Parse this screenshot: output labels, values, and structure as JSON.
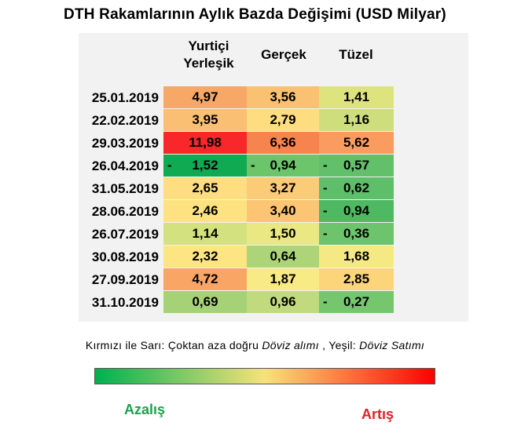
{
  "chart_data": {
    "type": "table",
    "title": "DTH Rakamlarının Aylık Bazda Değişimi (USD Milyar)",
    "columns": [
      {
        "line1": "Yurtiçi",
        "line2": "Yerleşik"
      },
      {
        "line1": "Gerçek",
        "line2": ""
      },
      {
        "line1": "Tüzel",
        "line2": ""
      }
    ],
    "rows": [
      {
        "date": "25.01.2019",
        "values": [
          {
            "sign": "",
            "text": "4,97",
            "value": 4.97,
            "color": "#f8a866"
          },
          {
            "sign": "",
            "text": "3,56",
            "value": 3.56,
            "color": "#fac172"
          },
          {
            "sign": "",
            "text": "1,41",
            "value": 1.41,
            "color": "#dde47d"
          }
        ]
      },
      {
        "date": "22.02.2019",
        "values": [
          {
            "sign": "",
            "text": "3,95",
            "value": 3.95,
            "color": "#fbbf73"
          },
          {
            "sign": "",
            "text": "2,79",
            "value": 2.79,
            "color": "#fedd80"
          },
          {
            "sign": "",
            "text": "1,16",
            "value": 1.16,
            "color": "#cfde7d"
          }
        ]
      },
      {
        "date": "29.03.2019",
        "values": [
          {
            "sign": "",
            "text": "11,98",
            "value": 11.98,
            "color": "#f8272a"
          },
          {
            "sign": "",
            "text": "6,36",
            "value": 6.36,
            "color": "#f7834e"
          },
          {
            "sign": "",
            "text": "5,62",
            "value": 5.62,
            "color": "#fa9b5f"
          }
        ]
      },
      {
        "date": "26.04.2019",
        "values": [
          {
            "sign": "-",
            "text": "1,52",
            "value": -1.52,
            "color": "#0faa52"
          },
          {
            "sign": "-",
            "text": "0,94",
            "value": -0.94,
            "color": "#6cc46b"
          },
          {
            "sign": "-",
            "text": "0,57",
            "value": -0.57,
            "color": "#63c06a"
          }
        ]
      },
      {
        "date": "31.05.2019",
        "values": [
          {
            "sign": "",
            "text": "2,65",
            "value": 2.65,
            "color": "#fede80"
          },
          {
            "sign": "",
            "text": "3,27",
            "value": 3.27,
            "color": "#fccb77"
          },
          {
            "sign": "-",
            "text": "0,62",
            "value": -0.62,
            "color": "#5fbe69"
          }
        ]
      },
      {
        "date": "28.06.2019",
        "values": [
          {
            "sign": "",
            "text": "2,46",
            "value": 2.46,
            "color": "#fee282"
          },
          {
            "sign": "",
            "text": "3,40",
            "value": 3.4,
            "color": "#fbc574"
          },
          {
            "sign": "-",
            "text": "0,94",
            "value": -0.94,
            "color": "#4fb862"
          }
        ]
      },
      {
        "date": "26.07.2019",
        "values": [
          {
            "sign": "",
            "text": "1,14",
            "value": 1.14,
            "color": "#d3e27f"
          },
          {
            "sign": "",
            "text": "1,50",
            "value": 1.5,
            "color": "#e9e883"
          },
          {
            "sign": "-",
            "text": "0,36",
            "value": -0.36,
            "color": "#6ec46c"
          }
        ]
      },
      {
        "date": "30.08.2019",
        "values": [
          {
            "sign": "",
            "text": "2,32",
            "value": 2.32,
            "color": "#fde583"
          },
          {
            "sign": "",
            "text": "0,64",
            "value": 0.64,
            "color": "#aed47a"
          },
          {
            "sign": "",
            "text": "1,68",
            "value": 1.68,
            "color": "#f5e984"
          }
        ]
      },
      {
        "date": "27.09.2019",
        "values": [
          {
            "sign": "",
            "text": "4,72",
            "value": 4.72,
            "color": "#f9a566"
          },
          {
            "sign": "",
            "text": "1,87",
            "value": 1.87,
            "color": "#f8ea84"
          },
          {
            "sign": "",
            "text": "2,85",
            "value": 2.85,
            "color": "#fcd57b"
          }
        ]
      },
      {
        "date": "31.10.2019",
        "values": [
          {
            "sign": "",
            "text": "0,69",
            "value": 0.69,
            "color": "#a5d277"
          },
          {
            "sign": "",
            "text": "0,96",
            "value": 0.96,
            "color": "#c0da7d"
          },
          {
            "sign": "-",
            "text": "0,27",
            "value": -0.27,
            "color": "#76c66e"
          }
        ]
      }
    ],
    "note": {
      "part1": "Kırmızı ile Sarı: Çoktan aza doğru ",
      "italic1": "Döviz alımı",
      "part2": " , Yeşil: ",
      "italic2": "Döviz Satımı"
    },
    "scale": {
      "low_label": "Azalış",
      "high_label": "Artış",
      "low_color": "#00b050",
      "mid_color": "#f7e27a",
      "high_color": "#ff0000",
      "low_label_color": "#1aa34a",
      "high_label_color": "#e02020"
    }
  }
}
